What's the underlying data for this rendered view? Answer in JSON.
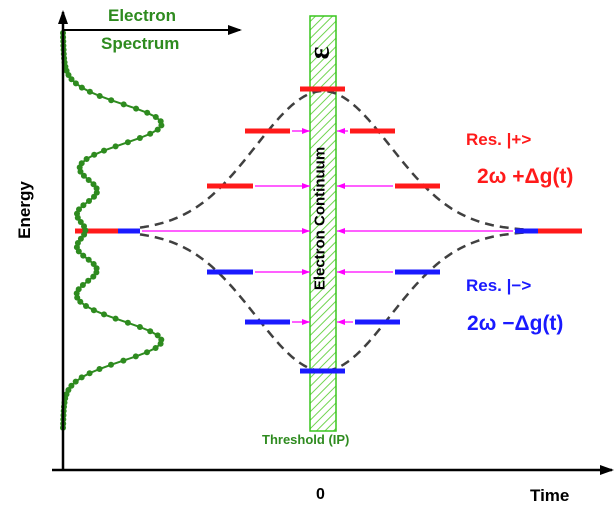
{
  "labels": {
    "y_axis": "Energy",
    "x_axis": "Time",
    "x_zero": "0",
    "spectrum_line1": "Electron",
    "spectrum_line2": "Spectrum",
    "continuum": "Electron Continuum",
    "epsilon": "ε",
    "threshold": "Threshold (IP)",
    "res_plus_name": "Res. |+>",
    "res_plus_formula": "2ω +Δg(t)",
    "res_minus_name": "Res. |−>",
    "res_minus_formula": "2ω −Δg(t)"
  },
  "colors": {
    "axis": "#000000",
    "spectrum": "#2e8b1f",
    "continuum_band": "#7fff5f",
    "upper_states": "#ff1a1a",
    "lower_states": "#1a1aff",
    "arrows": "#ff00ff",
    "envelope": "#404040"
  }
}
